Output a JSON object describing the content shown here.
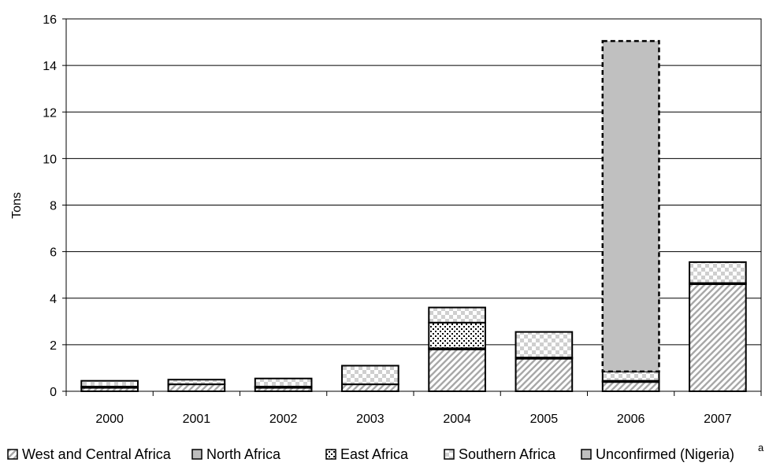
{
  "chart_data": {
    "type": "bar",
    "stacked": true,
    "categories": [
      "2000",
      "2001",
      "2002",
      "2003",
      "2004",
      "2005",
      "2006",
      "2007"
    ],
    "series": [
      {
        "name": "West and Central Africa",
        "values": [
          0.15,
          0.3,
          0.15,
          0.3,
          1.8,
          1.4,
          0.4,
          4.6
        ],
        "pattern": "diagonal-hatch"
      },
      {
        "name": "North Africa",
        "values": [
          0.05,
          0.0,
          0.05,
          0.0,
          0.05,
          0.05,
          0.05,
          0.05
        ],
        "pattern": "solid-gray"
      },
      {
        "name": "East Africa",
        "values": [
          0.0,
          0.0,
          0.0,
          0.0,
          1.1,
          0.0,
          0.0,
          0.0
        ],
        "pattern": "dots"
      },
      {
        "name": "Southern Africa",
        "values": [
          0.25,
          0.2,
          0.35,
          0.8,
          0.65,
          1.1,
          0.4,
          0.9
        ],
        "pattern": "checker"
      },
      {
        "name": "Unconfirmed (Nigeria)",
        "values": [
          0,
          0,
          0,
          0,
          0,
          0,
          14.2,
          0
        ],
        "pattern": "solid-gray-dashed-outline"
      }
    ],
    "title": "",
    "xlabel": "",
    "ylabel": "Tons",
    "ylim": [
      0,
      16
    ],
    "yticks": [
      "0",
      "2",
      "4",
      "6",
      "8",
      "10",
      "12",
      "14",
      "16"
    ],
    "grid": true,
    "legend_position": "bottom",
    "legend_footnote": "a"
  }
}
